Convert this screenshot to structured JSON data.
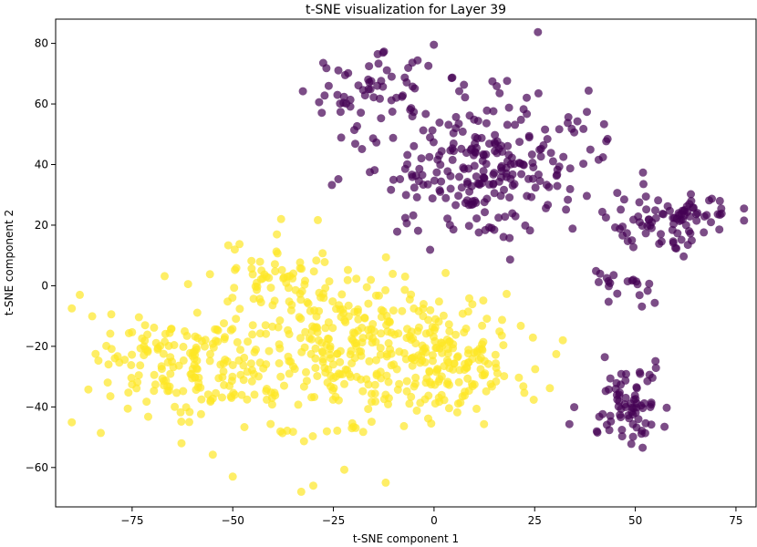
{
  "chart_data": {
    "type": "scatter",
    "title": "t-SNE visualization for Layer 39",
    "xlabel": "t-SNE component 1",
    "ylabel": "t-SNE component 2",
    "xlim": [
      -94,
      80
    ],
    "ylim": [
      -73,
      88
    ],
    "xticks": [
      -75,
      -50,
      -25,
      0,
      25,
      50,
      75
    ],
    "yticks": [
      -60,
      -40,
      -20,
      0,
      20,
      40,
      60,
      80
    ],
    "grid": false,
    "legend": "none",
    "series": [
      {
        "color": "#440154",
        "opacity": 0.7,
        "clusters": [
          {
            "center": [
              12,
              40
            ],
            "spread": [
              18,
              16
            ],
            "count": 260
          },
          {
            "center": [
              -20,
              62
            ],
            "spread": [
              8,
              7
            ],
            "count": 30
          },
          {
            "center": [
              -8,
              70
            ],
            "spread": [
              8,
              6
            ],
            "count": 25
          },
          {
            "center": [
              55,
              20
            ],
            "spread": [
              10,
              7
            ],
            "count": 70
          },
          {
            "center": [
              67,
              24
            ],
            "spread": [
              6,
              5
            ],
            "count": 20
          },
          {
            "center": [
              48,
              0
            ],
            "spread": [
              6,
              5
            ],
            "count": 20
          },
          {
            "center": [
              48,
              -38
            ],
            "spread": [
              7,
              9
            ],
            "count": 75
          }
        ]
      },
      {
        "color": "#fde725",
        "opacity": 0.7,
        "clusters": [
          {
            "center": [
              -55,
              -28
            ],
            "spread": [
              16,
              13
            ],
            "count": 180
          },
          {
            "center": [
              -20,
              -20
            ],
            "spread": [
              14,
              16
            ],
            "count": 220
          },
          {
            "center": [
              5,
              -25
            ],
            "spread": [
              13,
              14
            ],
            "count": 170
          },
          {
            "center": [
              -40,
              3
            ],
            "spread": [
              11,
              8
            ],
            "count": 60
          },
          {
            "center": [
              -75,
              -22
            ],
            "spread": [
              7,
              9
            ],
            "count": 30
          }
        ],
        "extras": [
          [
            -88,
            -3
          ],
          [
            -38,
            22
          ],
          [
            -30,
            -66
          ],
          [
            -12,
            -65
          ],
          [
            32,
            -18
          ],
          [
            -50,
            -63
          ]
        ]
      }
    ]
  }
}
